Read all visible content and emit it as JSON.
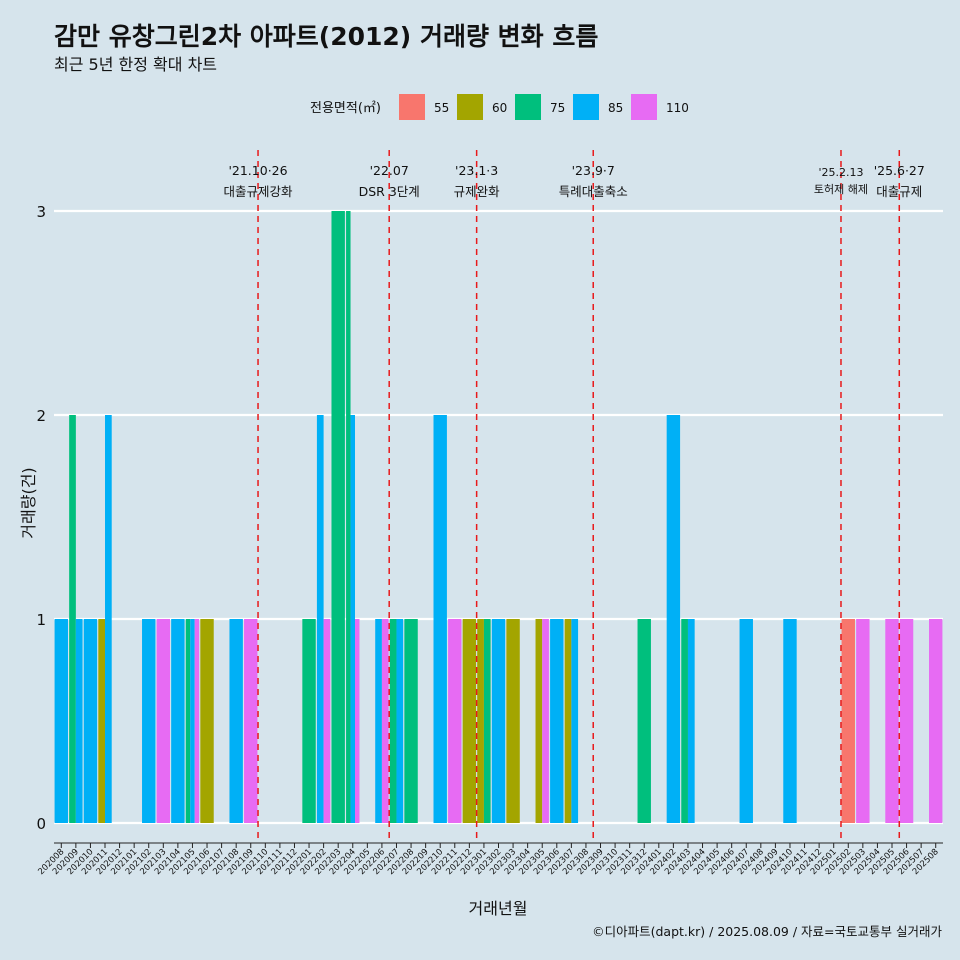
{
  "title": "감만 유창그린2차 아파트(2012) 거래량 변화 흐름",
  "subtitle": "최근 5년 한정 확대 차트",
  "caption": "©디아파트(dapt.kr) / 2025.08.09 / 자료=국토교통부 실거래가",
  "chart_data": {
    "type": "bar",
    "xlabel": "거래년월",
    "ylabel": "거래량(건)",
    "ylim": [
      0,
      3
    ],
    "y_ticks": [
      0,
      1,
      2,
      3
    ],
    "grid": "horizontal",
    "legend": {
      "title": "전용면적(㎡)",
      "placement": "top",
      "entries": [
        {
          "name": "55",
          "color": "#f8766d"
        },
        {
          "name": "60",
          "color": "#a3a500"
        },
        {
          "name": "75",
          "color": "#00bf7d"
        },
        {
          "name": "85",
          "color": "#00b0f6"
        },
        {
          "name": "110",
          "color": "#e76bf3"
        }
      ]
    },
    "categories": [
      "202008",
      "202009",
      "202010",
      "202011",
      "202012",
      "202101",
      "202102",
      "202103",
      "202104",
      "202105",
      "202106",
      "202107",
      "202108",
      "202109",
      "202110",
      "202111",
      "202112",
      "202201",
      "202202",
      "202203",
      "202204",
      "202205",
      "202206",
      "202207",
      "202208",
      "202209",
      "202210",
      "202211",
      "202212",
      "202301",
      "202302",
      "202303",
      "202304",
      "202305",
      "202306",
      "202307",
      "202308",
      "202309",
      "202310",
      "202311",
      "202312",
      "202401",
      "202402",
      "202403",
      "202404",
      "202405",
      "202406",
      "202407",
      "202408",
      "202409",
      "202410",
      "202411",
      "202412",
      "202501",
      "202502",
      "202503",
      "202504",
      "202505",
      "202506",
      "202507",
      "202508"
    ],
    "bars": [
      {
        "month": "202008",
        "segments": [
          {
            "area": "85",
            "count": 1
          }
        ]
      },
      {
        "month": "202009",
        "segments": [
          {
            "area": "75",
            "count": 2
          },
          {
            "area": "85",
            "count": 1
          }
        ]
      },
      {
        "month": "202010",
        "segments": [
          {
            "area": "85",
            "count": 1
          }
        ]
      },
      {
        "month": "202011",
        "segments": [
          {
            "area": "60",
            "count": 1
          },
          {
            "area": "85",
            "count": 2
          }
        ]
      },
      {
        "month": "202102",
        "segments": [
          {
            "area": "85",
            "count": 1
          }
        ]
      },
      {
        "month": "202103",
        "segments": [
          {
            "area": "110",
            "count": 1
          }
        ]
      },
      {
        "month": "202104",
        "segments": [
          {
            "area": "85",
            "count": 1
          }
        ]
      },
      {
        "month": "202105",
        "segments": [
          {
            "area": "75",
            "count": 1
          },
          {
            "area": "85",
            "count": 1
          },
          {
            "area": "110",
            "count": 1
          }
        ]
      },
      {
        "month": "202106",
        "segments": [
          {
            "area": "60",
            "count": 1
          }
        ]
      },
      {
        "month": "202108",
        "segments": [
          {
            "area": "85",
            "count": 1
          }
        ]
      },
      {
        "month": "202109",
        "segments": [
          {
            "area": "110",
            "count": 1
          }
        ]
      },
      {
        "month": "202201",
        "segments": [
          {
            "area": "75",
            "count": 1
          }
        ]
      },
      {
        "month": "202202",
        "segments": [
          {
            "area": "85",
            "count": 2
          },
          {
            "area": "110",
            "count": 1
          }
        ]
      },
      {
        "month": "202203",
        "segments": [
          {
            "area": "75",
            "count": 3
          }
        ]
      },
      {
        "month": "202204",
        "segments": [
          {
            "area": "75",
            "count": 3
          },
          {
            "area": "85",
            "count": 2
          },
          {
            "area": "110",
            "count": 1
          }
        ]
      },
      {
        "month": "202206",
        "segments": [
          {
            "area": "85",
            "count": 1
          },
          {
            "area": "110",
            "count": 1
          }
        ]
      },
      {
        "month": "202207",
        "segments": [
          {
            "area": "75",
            "count": 1
          },
          {
            "area": "85",
            "count": 1
          }
        ]
      },
      {
        "month": "202208",
        "segments": [
          {
            "area": "75",
            "count": 1
          }
        ]
      },
      {
        "month": "202210",
        "segments": [
          {
            "area": "85",
            "count": 2
          }
        ]
      },
      {
        "month": "202211",
        "segments": [
          {
            "area": "110",
            "count": 1
          }
        ]
      },
      {
        "month": "202212",
        "segments": [
          {
            "area": "60",
            "count": 1
          }
        ]
      },
      {
        "month": "202301",
        "segments": [
          {
            "area": "60",
            "count": 1
          },
          {
            "area": "75",
            "count": 1
          }
        ]
      },
      {
        "month": "202302",
        "segments": [
          {
            "area": "85",
            "count": 1
          }
        ]
      },
      {
        "month": "202303",
        "segments": [
          {
            "area": "60",
            "count": 1
          }
        ]
      },
      {
        "month": "202305",
        "segments": [
          {
            "area": "60",
            "count": 1
          },
          {
            "area": "110",
            "count": 1
          }
        ]
      },
      {
        "month": "202306",
        "segments": [
          {
            "area": "85",
            "count": 1
          }
        ]
      },
      {
        "month": "202307",
        "segments": [
          {
            "area": "60",
            "count": 1
          },
          {
            "area": "85",
            "count": 1
          }
        ]
      },
      {
        "month": "202312",
        "segments": [
          {
            "area": "75",
            "count": 1
          }
        ]
      },
      {
        "month": "202402",
        "segments": [
          {
            "area": "85",
            "count": 2
          }
        ]
      },
      {
        "month": "202403",
        "segments": [
          {
            "area": "75",
            "count": 1
          },
          {
            "area": "85",
            "count": 1
          }
        ]
      },
      {
        "month": "202407",
        "segments": [
          {
            "area": "85",
            "count": 1
          }
        ]
      },
      {
        "month": "202410",
        "segments": [
          {
            "area": "85",
            "count": 1
          }
        ]
      },
      {
        "month": "202502",
        "segments": [
          {
            "area": "55",
            "count": 1
          }
        ]
      },
      {
        "month": "202503",
        "segments": [
          {
            "area": "110",
            "count": 1
          }
        ]
      },
      {
        "month": "202505",
        "segments": [
          {
            "area": "110",
            "count": 1
          }
        ]
      },
      {
        "month": "202506",
        "segments": [
          {
            "area": "110",
            "count": 1
          }
        ]
      },
      {
        "month": "202508",
        "segments": [
          {
            "area": "110",
            "count": 1
          }
        ]
      }
    ],
    "events": [
      {
        "month": "202110",
        "date": "'21.10·26",
        "label": "대출규제강화"
      },
      {
        "month": "202207",
        "date": "'22.07",
        "label": "DSR 3단계"
      },
      {
        "month": "202301",
        "date": "'23.1·3",
        "label": "규제완화"
      },
      {
        "month": "202309",
        "date": "'23.9·7",
        "label": "특례대출축소"
      },
      {
        "month": "202502",
        "date": "'25.2.13",
        "label": "토허제 해제"
      },
      {
        "month": "202506",
        "date": "'25.6·27",
        "label": "대출규제"
      }
    ]
  }
}
